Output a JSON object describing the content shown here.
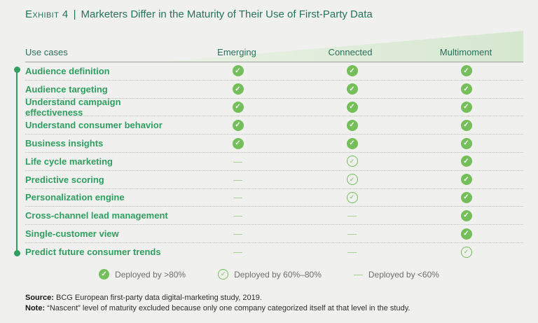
{
  "exhibit": {
    "label": "Exhibit 4",
    "divider": "|",
    "title": "Marketers Differ in the Maturity of Their Use of First-Party Data"
  },
  "chart_data": {
    "type": "table",
    "title": "Marketers Differ in the Maturity of Their Use of First-Party Data",
    "exhibit_number": "Exhibit 4",
    "columns": [
      "Use cases",
      "Emerging",
      "Connected",
      "Multimoment"
    ],
    "rows": [
      {
        "label": "Audience definition",
        "values": [
          ">80%",
          ">80%",
          ">80%"
        ]
      },
      {
        "label": "Audience targeting",
        "values": [
          ">80%",
          ">80%",
          ">80%"
        ]
      },
      {
        "label": "Understand campaign effectiveness",
        "values": [
          ">80%",
          ">80%",
          ">80%"
        ]
      },
      {
        "label": "Understand consumer behavior",
        "values": [
          ">80%",
          ">80%",
          ">80%"
        ]
      },
      {
        "label": "Business insights",
        "values": [
          ">80%",
          ">80%",
          ">80%"
        ]
      },
      {
        "label": "Life cycle marketing",
        "values": [
          "<60%",
          "60-80%",
          ">80%"
        ]
      },
      {
        "label": "Predictive scoring",
        "values": [
          "<60%",
          "60-80%",
          ">80%"
        ]
      },
      {
        "label": "Personalization engine",
        "values": [
          "<60%",
          "60-80%",
          ">80%"
        ]
      },
      {
        "label": "Cross-channel lead management",
        "values": [
          "<60%",
          "<60%",
          ">80%"
        ]
      },
      {
        "label": "Single-customer view",
        "values": [
          "<60%",
          "<60%",
          ">80%"
        ]
      },
      {
        "label": "Predict future consumer trends",
        "values": [
          "<60%",
          "<60%",
          "60-80%"
        ]
      }
    ],
    "value_meaning": {
      ">80%": "Deployed by >80% (solid green check)",
      "60-80%": "Deployed by 60%–80% (outlined green check)",
      "<60%": "Deployed by <60% (green dash)"
    },
    "layout": {
      "legend_position": "bottom-center",
      "header_background": "rising green wedge"
    }
  },
  "legend": {
    "items": [
      {
        "icon": "check-solid-icon",
        "label": "Deployed by >80%"
      },
      {
        "icon": "check-outline-icon",
        "label": "Deployed by 60%–80%"
      },
      {
        "icon": "dash-icon",
        "label": "Deployed by <60%"
      }
    ]
  },
  "footer": {
    "source_label": "Source:",
    "source_text": " BCG European first-party data digital-marketing study, 2019.",
    "note_label": "Note:",
    "note_text": " “Nascent” level of maturity excluded because only one company categorized itself at that level in the study."
  },
  "colors": {
    "background": "#f0f0ef",
    "title_green": "#26725a",
    "row_label_green": "#2f9e60",
    "check_green": "#74bf5a",
    "dash_green": "#9ccb85",
    "wedge_green_light": "#eaf2e5",
    "wedge_green_dark": "#d6e7d0",
    "legend_text_gray": "#6e6e6e"
  }
}
